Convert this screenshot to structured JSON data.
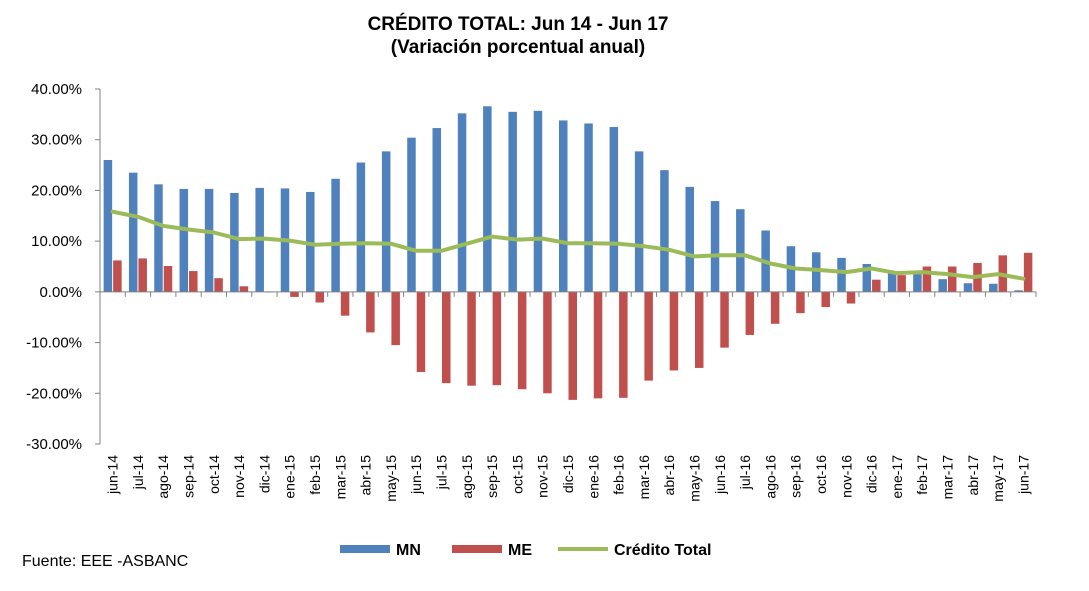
{
  "chart_data": {
    "type": "bar",
    "title": "CRÉDITO TOTAL: Jun 14 - Jun 17",
    "subtitle": "(Variación porcentual anual)",
    "xlabel": "",
    "ylabel": "",
    "ylim": [
      -30,
      40
    ],
    "y_ticks": [
      "40.00%",
      "30.00%",
      "20.00%",
      "10.00%",
      "0.00%",
      "-10.00%",
      "-20.00%",
      "-30.00%"
    ],
    "y_tick_values": [
      40,
      30,
      20,
      10,
      0,
      -10,
      -20,
      -30
    ],
    "grid": false,
    "legend_position": "bottom",
    "categories": [
      "jun-14",
      "jul-14",
      "ago-14",
      "sep-14",
      "oct-14",
      "nov-14",
      "dic-14",
      "ene-15",
      "feb-15",
      "mar-15",
      "abr-15",
      "may-15",
      "jun-15",
      "jul-15",
      "ago-15",
      "sep-15",
      "oct-15",
      "nov-15",
      "dic-15",
      "ene-16",
      "feb-16",
      "mar-16",
      "abr-16",
      "may-16",
      "jun-16",
      "jul-16",
      "ago-16",
      "sep-16",
      "oct-16",
      "nov-16",
      "dic-16",
      "ene-17",
      "feb-17",
      "mar-17",
      "abr-17",
      "may-17",
      "jun-17"
    ],
    "series": [
      {
        "name": "MN",
        "type": "bar",
        "color": "#4F81BD",
        "values": [
          26.0,
          23.5,
          21.2,
          20.3,
          20.3,
          19.5,
          20.5,
          20.4,
          19.7,
          22.3,
          25.5,
          27.7,
          30.4,
          32.3,
          35.2,
          36.6,
          35.5,
          35.7,
          33.8,
          33.2,
          32.5,
          27.7,
          24.0,
          20.7,
          17.9,
          16.3,
          12.1,
          9.0,
          7.8,
          6.7,
          5.5,
          4.0,
          3.5,
          2.5,
          1.7,
          1.6,
          0.3
        ]
      },
      {
        "name": "ME",
        "type": "bar",
        "color": "#C0504D",
        "values": [
          6.2,
          6.6,
          5.1,
          4.1,
          2.7,
          1.1,
          -0.1,
          -1.0,
          -2.1,
          -4.7,
          -8.0,
          -10.5,
          -15.8,
          -18.0,
          -18.5,
          -18.4,
          -19.2,
          -20.0,
          -21.3,
          -21.0,
          -20.9,
          -17.5,
          -15.5,
          -15.0,
          -11.0,
          -8.5,
          -6.3,
          -4.2,
          -3.0,
          -2.3,
          2.4,
          3.3,
          5.0,
          5.0,
          5.7,
          7.2,
          7.7
        ]
      },
      {
        "name": "Crédito Total",
        "type": "line",
        "color": "#9BBB59",
        "values": [
          15.8,
          14.8,
          13.0,
          12.3,
          11.7,
          10.4,
          10.5,
          10.1,
          9.3,
          9.5,
          9.6,
          9.5,
          8.1,
          8.1,
          9.5,
          10.9,
          10.3,
          10.5,
          9.6,
          9.6,
          9.5,
          9.0,
          8.3,
          7.0,
          7.2,
          7.2,
          5.6,
          4.6,
          4.3,
          3.9,
          4.6,
          3.7,
          3.9,
          3.5,
          2.9,
          3.5,
          2.6
        ]
      }
    ]
  },
  "source": "Fuente: EEE -ASBANC",
  "legend": [
    {
      "label": "MN",
      "color": "#4F81BD",
      "kind": "bar"
    },
    {
      "label": "ME",
      "color": "#C0504D",
      "kind": "bar"
    },
    {
      "label": "Crédito Total",
      "color": "#9BBB59",
      "kind": "line"
    }
  ]
}
